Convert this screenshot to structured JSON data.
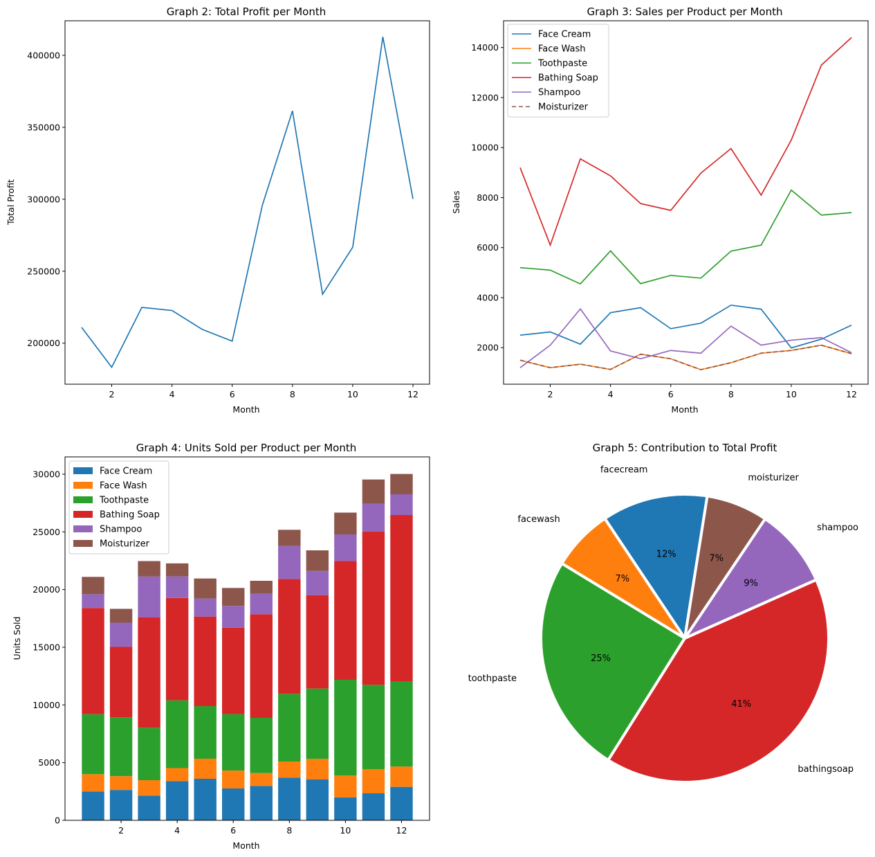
{
  "chart_data": [
    {
      "type": "line",
      "title": "Graph 2: Total Profit per Month",
      "xlabel": "Month",
      "ylabel": "Total Profit",
      "x": [
        1,
        2,
        3,
        4,
        5,
        6,
        7,
        8,
        9,
        10,
        11,
        12
      ],
      "xticks": [
        2,
        4,
        6,
        8,
        10,
        12
      ],
      "yticks": [
        200000,
        250000,
        300000,
        350000,
        400000
      ],
      "xlim": [
        0.45,
        12.55
      ],
      "ylim": [
        171500,
        424000
      ],
      "color": "#1f77b4",
      "series": [
        {
          "name": "Total Profit",
          "values": [
            211000,
            183300,
            224900,
            222700,
            209600,
            201400,
            295800,
            361400,
            234000,
            266700,
            412800,
            300200
          ]
        }
      ]
    },
    {
      "type": "line",
      "title": "Graph 3: Sales per Product per Month",
      "xlabel": "Month",
      "ylabel": "Sales",
      "x": [
        1,
        2,
        3,
        4,
        5,
        6,
        7,
        8,
        9,
        10,
        11,
        12
      ],
      "xticks": [
        2,
        4,
        6,
        8,
        10,
        12
      ],
      "yticks": [
        2000,
        4000,
        6000,
        8000,
        10000,
        12000,
        14000
      ],
      "xlim": [
        0.45,
        12.55
      ],
      "ylim": [
        540,
        15070
      ],
      "legend": "top-left",
      "series": [
        {
          "name": "Face Cream",
          "color": "#1f77b4",
          "dash": "",
          "values": [
            2500,
            2630,
            2140,
            3400,
            3600,
            2760,
            2980,
            3700,
            3540,
            1990,
            2340,
            2900
          ]
        },
        {
          "name": "Face Wash",
          "color": "#ff7f0e",
          "dash": "",
          "values": [
            1500,
            1200,
            1340,
            1130,
            1740,
            1555,
            1120,
            1400,
            1780,
            1890,
            2100,
            1760
          ]
        },
        {
          "name": "Toothpaste",
          "color": "#2ca02c",
          "dash": "",
          "values": [
            5200,
            5100,
            4550,
            5870,
            4560,
            4890,
            4780,
            5860,
            6100,
            8300,
            7300,
            7400
          ]
        },
        {
          "name": "Bathing Soap",
          "color": "#d62728",
          "dash": "",
          "values": [
            9200,
            6100,
            9550,
            8870,
            7760,
            7490,
            8980,
            9960,
            8100,
            10300,
            13300,
            14400
          ]
        },
        {
          "name": "Shampoo",
          "color": "#9467bd",
          "dash": "",
          "values": [
            1200,
            2100,
            3550,
            1870,
            1560,
            1890,
            1780,
            2860,
            2100,
            2300,
            2400,
            1800
          ]
        },
        {
          "name": "Moisturizer",
          "color": "#8c564b",
          "dash": "6,4",
          "values": [
            1500,
            1200,
            1340,
            1130,
            1740,
            1555,
            1120,
            1400,
            1780,
            1890,
            2100,
            1760
          ]
        }
      ]
    },
    {
      "type": "bar",
      "stacked": true,
      "title": "Graph 4: Units Sold per Product per Month",
      "xlabel": "Month",
      "ylabel": "Units Sold",
      "x": [
        1,
        2,
        3,
        4,
        5,
        6,
        7,
        8,
        9,
        10,
        11,
        12
      ],
      "xticks": [
        2,
        4,
        6,
        8,
        10,
        12
      ],
      "yticks": [
        0,
        5000,
        10000,
        15000,
        20000,
        25000,
        30000
      ],
      "xlim": [
        0.0,
        13.0
      ],
      "ylim": [
        0,
        31500
      ],
      "legend": "top-left",
      "series": [
        {
          "name": "Face Cream",
          "color": "#1f77b4",
          "values": [
            2500,
            2630,
            2140,
            3400,
            3600,
            2760,
            2980,
            3700,
            3540,
            1990,
            2340,
            2900
          ]
        },
        {
          "name": "Face Wash",
          "color": "#ff7f0e",
          "values": [
            1500,
            1200,
            1340,
            1130,
            1740,
            1555,
            1120,
            1400,
            1780,
            1890,
            2100,
            1760
          ]
        },
        {
          "name": "Toothpaste",
          "color": "#2ca02c",
          "values": [
            5200,
            5100,
            4550,
            5870,
            4560,
            4890,
            4780,
            5860,
            6100,
            8300,
            7300,
            7400
          ]
        },
        {
          "name": "Bathing Soap",
          "color": "#d62728",
          "values": [
            9200,
            6100,
            9550,
            8870,
            7760,
            7490,
            8980,
            9960,
            8100,
            10300,
            13300,
            14400
          ]
        },
        {
          "name": "Shampoo",
          "color": "#9467bd",
          "values": [
            1200,
            2100,
            3550,
            1870,
            1560,
            1890,
            1780,
            2860,
            2100,
            2300,
            2400,
            1800
          ]
        },
        {
          "name": "Moisturizer",
          "color": "#8c564b",
          "values": [
            1500,
            1200,
            1340,
            1130,
            1740,
            1555,
            1120,
            1400,
            1780,
            1890,
            2100,
            1760
          ]
        }
      ]
    },
    {
      "type": "pie",
      "title": "Graph 5: Contribution to Total Profit",
      "start_angle_deg": 81,
      "slices": [
        {
          "label": "facecream",
          "percent": 12,
          "display": "12%",
          "color": "#1f77b4"
        },
        {
          "label": "facewash",
          "percent": 7,
          "display": "7%",
          "color": "#ff7f0e"
        },
        {
          "label": "toothpaste",
          "percent": 25,
          "display": "25%",
          "color": "#2ca02c"
        },
        {
          "label": "bathingsoap",
          "percent": 41,
          "display": "41%",
          "color": "#d62728"
        },
        {
          "label": "shampoo",
          "percent": 9,
          "display": "9%",
          "color": "#9467bd"
        },
        {
          "label": "moisturizer",
          "percent": 7,
          "display": "7%",
          "color": "#8c564b"
        }
      ]
    }
  ]
}
